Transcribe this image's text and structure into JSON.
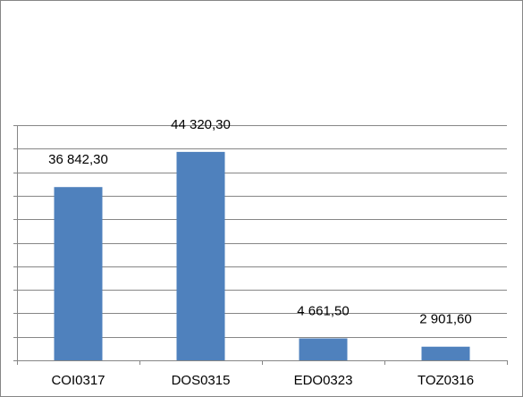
{
  "chart_data": {
    "type": "bar",
    "categories": [
      "COI0317",
      "DOS0315",
      "EDO0323",
      "TOZ0316"
    ],
    "values": [
      36842.3,
      44320.3,
      4661.5,
      2901.6
    ],
    "data_labels": [
      "36 842,30",
      "44 320,30",
      "4 661,50",
      "2 901,60"
    ],
    "title": "",
    "xlabel": "",
    "ylabel": "",
    "ylim": [
      0,
      50000
    ],
    "y_tick_step": 5000,
    "grid": true,
    "bar_color": "#4F81BD",
    "grid_color": "#868686"
  }
}
